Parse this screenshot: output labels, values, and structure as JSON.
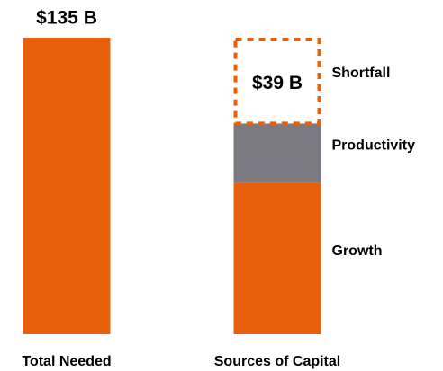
{
  "chart_data": {
    "type": "bar",
    "stacked": true,
    "categories": [
      "Total Needed",
      "Sources of Capital"
    ],
    "ylim": [
      0,
      135
    ],
    "series": [
      {
        "color": "#e8600c",
        "values": [
          135,
          null
        ],
        "value_labels": [
          "$135 B",
          null
        ]
      },
      {
        "name": "Growth",
        "color": "#e8600c",
        "values": [
          null,
          69
        ]
      },
      {
        "name": "Productivity",
        "color": "#7a7a80",
        "values": [
          null,
          27
        ]
      },
      {
        "name": "Shortfall",
        "color": "#e8600c",
        "style": "dashed",
        "values": [
          null,
          39
        ],
        "value_labels": [
          null,
          "$39 B"
        ]
      }
    ]
  }
}
